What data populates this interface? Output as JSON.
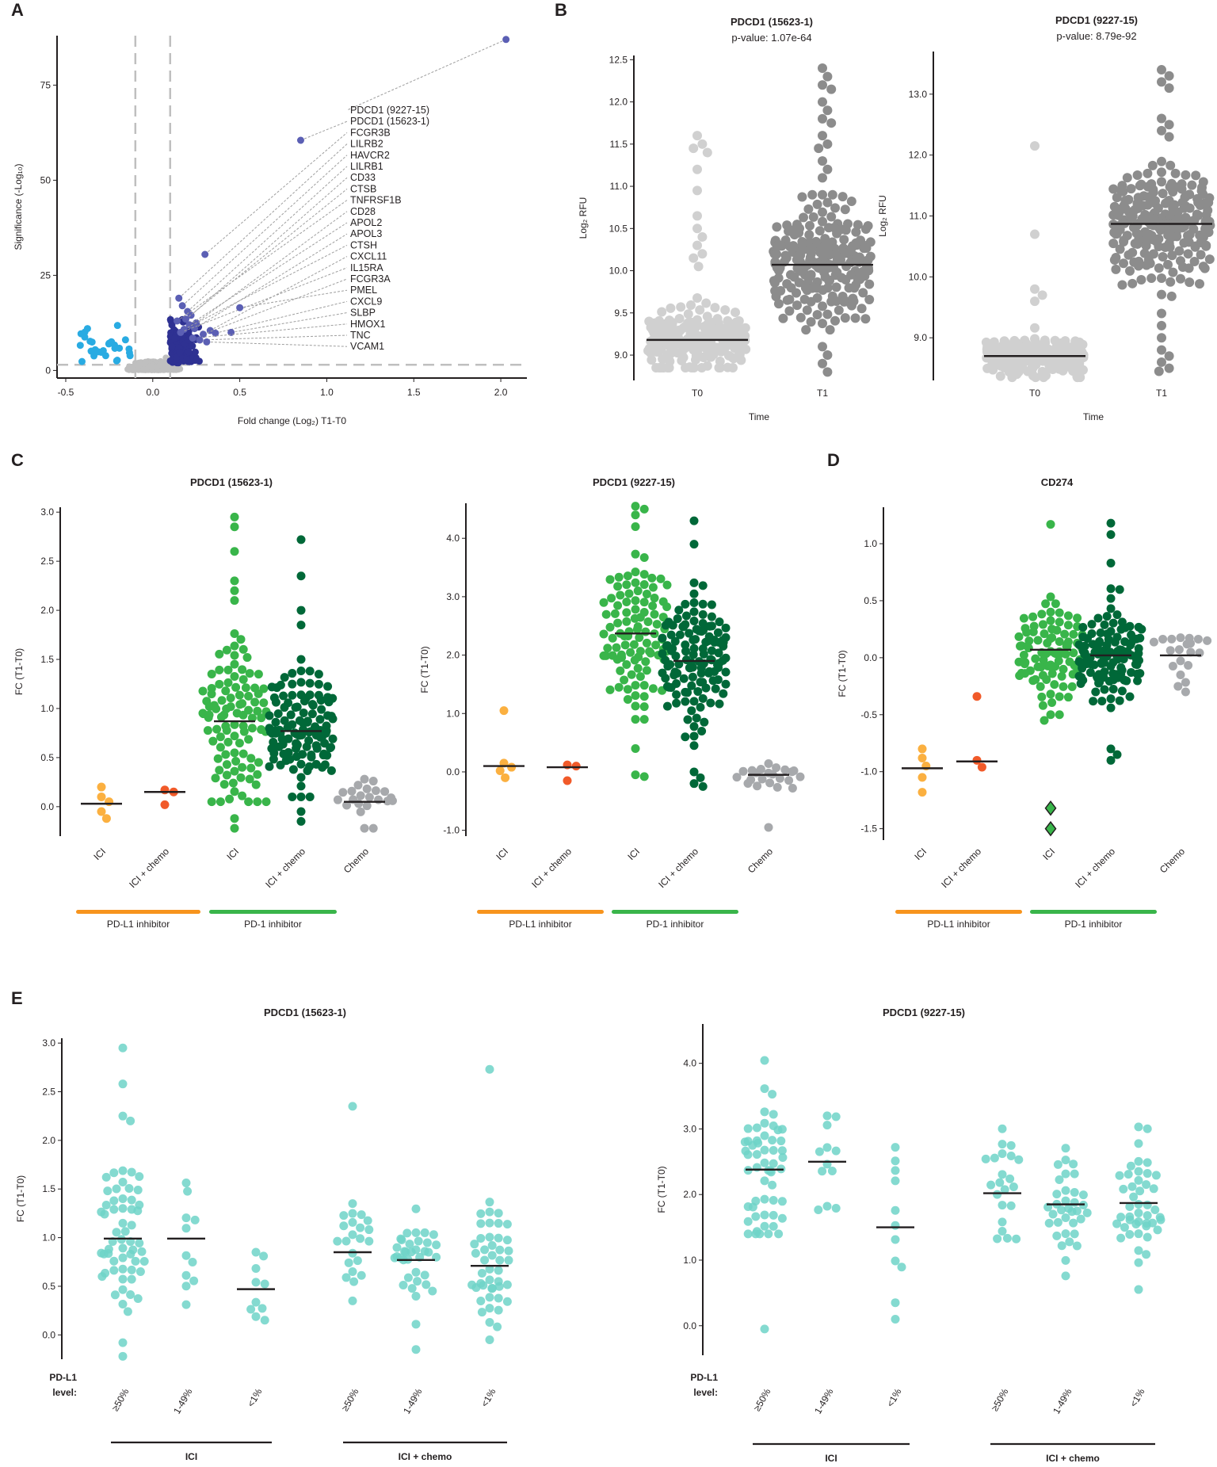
{
  "panel_labels": [
    "A",
    "B",
    "C",
    "D",
    "E"
  ],
  "chart_data": [
    {
      "id": "A",
      "type": "scatter",
      "title": "",
      "xlabel": "Fold change (Log₂) T1-T0",
      "ylabel": "Significance (-Log₁₀)",
      "xlim": [
        -0.55,
        2.15
      ],
      "ylim": [
        -2,
        88
      ],
      "xticks": [
        -0.5,
        0.0,
        0.5,
        1.0,
        1.5,
        2.0
      ],
      "xtick_labels": [
        "-0.5",
        "0.0",
        "0.5",
        "1.0",
        "1.5",
        "2.0"
      ],
      "yticks": [
        0,
        25,
        50,
        75
      ],
      "thresholds": {
        "fc": [
          -0.1,
          0.1
        ],
        "significance": 1.5
      },
      "colors": {
        "down": "#29abe2",
        "ns": "#bfbfbf",
        "up": "#2e3192"
      },
      "labeled_points": [
        {
          "gene": "PDCD1 (9227-15)",
          "x": 2.03,
          "y": 87.0
        },
        {
          "gene": "PDCD1 (15623-1)",
          "x": 0.85,
          "y": 60.5
        },
        {
          "gene": "FCGR3B",
          "x": 0.3,
          "y": 30.5
        },
        {
          "gene": "LILRB2",
          "x": 0.15,
          "y": 19.0
        },
        {
          "gene": "HAVCR2",
          "x": 0.17,
          "y": 17.0
        },
        {
          "gene": "LILRB1",
          "x": 0.2,
          "y": 15.5
        },
        {
          "gene": "CD33",
          "x": 0.22,
          "y": 14.5
        },
        {
          "gene": "CTSB",
          "x": 0.19,
          "y": 13.5
        },
        {
          "gene": "TNFRSF1B",
          "x": 0.14,
          "y": 13.0
        },
        {
          "gene": "CD28",
          "x": 0.25,
          "y": 12.5
        },
        {
          "gene": "APOL2",
          "x": 0.21,
          "y": 12.0
        },
        {
          "gene": "APOL3",
          "x": 0.24,
          "y": 11.0
        },
        {
          "gene": "CTSH",
          "x": 0.18,
          "y": 10.8
        },
        {
          "gene": "CXCL11",
          "x": 0.33,
          "y": 10.5
        },
        {
          "gene": "IL15RA",
          "x": 0.16,
          "y": 10.0
        },
        {
          "gene": "FCGR3A",
          "x": 0.29,
          "y": 9.5
        },
        {
          "gene": "PMEL",
          "x": 0.5,
          "y": 16.5
        },
        {
          "gene": "CXCL9",
          "x": 0.36,
          "y": 9.8
        },
        {
          "gene": "SLBP",
          "x": 0.45,
          "y": 10.0
        },
        {
          "gene": "HMOX1",
          "x": 0.23,
          "y": 8.5
        },
        {
          "gene": "TNC",
          "x": 0.27,
          "y": 8.0
        },
        {
          "gene": "VCAM1",
          "x": 0.31,
          "y": 7.5
        }
      ]
    },
    {
      "id": "B1",
      "type": "scatter",
      "title": "PDCD1 (15623-1)",
      "subtitle": "p-value: 1.07e-64",
      "xlabel": "Time",
      "ylabel": "Log₂ RFU",
      "categories": [
        "T0",
        "T1"
      ],
      "ylim": [
        8.7,
        12.55
      ],
      "yticks": [
        9.0,
        9.5,
        10.0,
        10.5,
        11.0,
        11.5,
        12.0,
        12.5
      ],
      "ytick_labels": [
        "9.0",
        "9.5",
        "10.0",
        "10.5",
        "11.0",
        "11.5",
        "12.0",
        "12.5"
      ],
      "series": [
        {
          "name": "T0",
          "color": "#d0d0d0",
          "n": 230,
          "median": 9.18,
          "sd": 0.18,
          "min": 8.85,
          "max": 10.0,
          "outliers": [
            11.6,
            11.5,
            11.45,
            11.4,
            11.2,
            10.95,
            10.65,
            10.5,
            10.4,
            10.3,
            10.2,
            10.15,
            10.05
          ]
        },
        {
          "name": "T1",
          "color": "#8c8c8c",
          "n": 230,
          "median": 10.07,
          "sd": 0.35,
          "min": 9.3,
          "max": 10.9,
          "outliers": [
            12.4,
            12.3,
            12.2,
            12.15,
            12.0,
            11.9,
            11.8,
            11.75,
            11.6,
            11.5,
            11.45,
            11.3,
            11.2,
            11.1,
            9.1,
            9.0,
            8.9,
            8.8
          ]
        }
      ]
    },
    {
      "id": "B2",
      "type": "scatter",
      "title": "PDCD1 (9227-15)",
      "subtitle": "p-value: 8.79e-92",
      "xlabel": "Time",
      "ylabel": "Log₂ RFU",
      "categories": [
        "T0",
        "T1"
      ],
      "ylim": [
        8.3,
        13.7
      ],
      "yticks": [
        9.0,
        10.0,
        11.0,
        12.0,
        13.0
      ],
      "ytick_labels": [
        "9.0",
        "10.0",
        "11.0",
        "12.0",
        "13.0"
      ],
      "series": [
        {
          "name": "T0",
          "color": "#d0d0d0",
          "n": 230,
          "median": 8.7,
          "sd": 0.16,
          "min": 8.35,
          "max": 9.3,
          "outliers": [
            12.15,
            10.7,
            9.8,
            9.7,
            9.6
          ]
        },
        {
          "name": "T1",
          "color": "#8c8c8c",
          "n": 230,
          "median": 10.87,
          "sd": 0.5,
          "min": 9.6,
          "max": 12.1,
          "outliers": [
            13.4,
            13.3,
            13.2,
            13.1,
            12.6,
            12.5,
            12.4,
            12.3,
            9.4,
            9.2,
            9.0,
            8.8,
            8.7,
            8.6,
            8.5,
            8.45
          ]
        }
      ]
    },
    {
      "id": "C1",
      "type": "scatter",
      "title": "PDCD1 (15623-1)",
      "ylabel": "FC (T1-T0)",
      "categories": [
        "ICI",
        "ICI + chemo",
        "ICI",
        "ICI + chemo",
        "Chemo"
      ],
      "ylim": [
        -0.3,
        3.05
      ],
      "yticks": [
        0.0,
        0.5,
        1.0,
        1.5,
        2.0,
        2.5,
        3.0
      ],
      "ytick_labels": [
        "0.0",
        "0.5",
        "1.0",
        "1.5",
        "2.0",
        "2.5",
        "3.0"
      ],
      "groups": [
        {
          "label": "PD-L1 inhibitor",
          "color": "#f7941d",
          "from": 0,
          "to": 1
        },
        {
          "label": "PD-1 inhibitor",
          "color": "#39b54a",
          "from": 2,
          "to": 3
        }
      ],
      "series": [
        {
          "name": "PD-L1 ICI",
          "color": "#fbb040",
          "median": 0.03,
          "values": [
            0.2,
            0.1,
            0.05,
            -0.05,
            -0.12
          ]
        },
        {
          "name": "PD-L1 ICI + chemo",
          "color": "#f15a29",
          "median": 0.15,
          "values": [
            0.17,
            0.15,
            0.02
          ]
        },
        {
          "name": "PD-1 ICI",
          "color": "#39b54a",
          "median": 0.87,
          "n": 100,
          "sd": 0.45,
          "min": 0.05,
          "max": 1.95,
          "outliers": [
            2.95,
            2.85,
            2.6,
            2.3,
            2.2,
            2.1,
            -0.12,
            -0.22
          ]
        },
        {
          "name": "PD-1 ICI + chemo",
          "color": "#006838",
          "median": 0.77,
          "n": 125,
          "sd": 0.3,
          "min": 0.1,
          "max": 1.5,
          "outliers": [
            2.72,
            2.35,
            2.0,
            1.85,
            -0.05,
            -0.15
          ]
        },
        {
          "name": "Chemo",
          "color": "#a7a9ac",
          "median": 0.05,
          "n": 22,
          "sd": 0.12,
          "min": -0.22,
          "max": 0.28
        }
      ]
    },
    {
      "id": "C2",
      "type": "scatter",
      "title": "PDCD1 (9227-15)",
      "ylabel": "FC (T1-T0)",
      "categories": [
        "ICI",
        "ICI + chemo",
        "ICI",
        "ICI + chemo",
        "Chemo"
      ],
      "ylim": [
        -1.1,
        4.6
      ],
      "yticks": [
        -1.0,
        0.0,
        1.0,
        2.0,
        3.0,
        4.0
      ],
      "ytick_labels": [
        "-1.0",
        "0.0",
        "1.0",
        "2.0",
        "3.0",
        "4.0"
      ],
      "groups": [
        {
          "label": "PD-L1 inhibitor",
          "color": "#f7941d",
          "from": 0,
          "to": 1
        },
        {
          "label": "PD-1 inhibitor",
          "color": "#39b54a",
          "from": 2,
          "to": 3
        }
      ],
      "series": [
        {
          "name": "PD-L1 ICI",
          "color": "#fbb040",
          "median": 0.1,
          "values": [
            1.05,
            0.15,
            0.08,
            0.02,
            -0.1
          ]
        },
        {
          "name": "PD-L1 ICI + chemo",
          "color": "#f15a29",
          "median": 0.08,
          "values": [
            0.12,
            0.1,
            -0.15
          ]
        },
        {
          "name": "PD-1 ICI",
          "color": "#39b54a",
          "median": 2.37,
          "n": 100,
          "sd": 0.65,
          "min": 0.9,
          "max": 3.9,
          "outliers": [
            4.55,
            4.5,
            4.4,
            4.2,
            0.4,
            -0.05,
            -0.08
          ]
        },
        {
          "name": "PD-1 ICI + chemo",
          "color": "#006838",
          "median": 1.9,
          "n": 125,
          "sd": 0.55,
          "min": 0.6,
          "max": 3.3,
          "outliers": [
            4.3,
            3.9,
            0.45,
            0.0,
            -0.1,
            -0.2,
            -0.25
          ]
        },
        {
          "name": "Chemo",
          "color": "#a7a9ac",
          "median": -0.05,
          "n": 22,
          "sd": 0.13,
          "min": -0.3,
          "max": 0.3,
          "outliers": [
            -0.95
          ]
        }
      ]
    },
    {
      "id": "D",
      "type": "scatter",
      "title": "CD274",
      "ylabel": "FC (T1-T0)",
      "categories": [
        "ICI",
        "ICI + chemo",
        "ICI",
        "ICI + chemo",
        "Chemo"
      ],
      "ylim": [
        -1.6,
        1.32
      ],
      "yticks": [
        -1.5,
        -1.0,
        -0.5,
        0.0,
        0.5,
        1.0
      ],
      "ytick_labels": [
        "-1.5",
        "-1.0",
        "-0.5",
        "0.0",
        "0.5",
        "1.0"
      ],
      "groups": [
        {
          "label": "PD-L1 inhibitor",
          "color": "#f7941d",
          "from": 0,
          "to": 1
        },
        {
          "label": "PD-1 inhibitor",
          "color": "#39b54a",
          "from": 2,
          "to": 3
        }
      ],
      "series": [
        {
          "name": "PD-L1 ICI",
          "color": "#fbb040",
          "median": -0.97,
          "values": [
            -0.8,
            -0.88,
            -0.95,
            -1.05,
            -1.18
          ]
        },
        {
          "name": "PD-L1 ICI + chemo",
          "color": "#f15a29",
          "median": -0.91,
          "values": [
            -0.34,
            -0.9,
            -0.96
          ]
        },
        {
          "name": "PD-1 ICI",
          "color": "#39b54a",
          "median": 0.07,
          "n": 95,
          "sd": 0.22,
          "min": -0.5,
          "max": 0.75,
          "outliers": [
            1.17,
            -0.55
          ],
          "diamonds": [
            -1.32,
            -1.5
          ]
        },
        {
          "name": "PD-1 ICI + chemo",
          "color": "#006838",
          "median": 0.02,
          "n": 125,
          "sd": 0.22,
          "min": -0.6,
          "max": 0.7,
          "outliers": [
            1.18,
            1.08,
            0.83,
            -0.8,
            -0.85,
            -0.9
          ]
        },
        {
          "name": "Chemo",
          "color": "#a7a9ac",
          "median": 0.02,
          "n": 20,
          "sd": 0.18,
          "min": -0.3,
          "max": 0.48
        }
      ]
    },
    {
      "id": "E1",
      "type": "scatter",
      "title": "PDCD1 (15623-1)",
      "ylabel": "FC (T1-T0)",
      "categories": [
        "≥50%",
        "1-49%",
        "<1%",
        "≥50%",
        "1-49%",
        "<1%"
      ],
      "ylim": [
        -0.25,
        3.05
      ],
      "yticks": [
        0.0,
        0.5,
        1.0,
        1.5,
        2.0,
        2.5,
        3.0
      ],
      "ytick_labels": [
        "0.0",
        "0.5",
        "1.0",
        "1.5",
        "2.0",
        "2.5",
        "3.0"
      ],
      "level_label": [
        "PD-L1",
        "level:"
      ],
      "groups": [
        {
          "label": "ICI",
          "from": 0,
          "to": 2
        },
        {
          "label": "ICI + chemo",
          "from": 3,
          "to": 5
        }
      ],
      "color": "#6fd3c8",
      "series": [
        {
          "name": "ICI ≥50%",
          "median": 0.99,
          "n": 55,
          "sd": 0.38,
          "min": 0.2,
          "max": 1.9,
          "outliers": [
            2.95,
            2.58,
            2.25,
            2.2,
            -0.08,
            -0.22
          ]
        },
        {
          "name": "ICI 1-49%",
          "median": 0.99,
          "n": 11,
          "sd": 0.45,
          "min": -0.1,
          "max": 1.75
        },
        {
          "name": "ICI <1%",
          "median": 0.47,
          "n": 10,
          "sd": 0.3,
          "min": -0.1,
          "max": 1.85
        },
        {
          "name": "ICI + chemo ≥50%",
          "median": 0.85,
          "n": 22,
          "sd": 0.3,
          "min": 0.35,
          "max": 1.35,
          "outliers": [
            2.35
          ]
        },
        {
          "name": "ICI + chemo 1-49%",
          "median": 0.77,
          "n": 35,
          "sd": 0.25,
          "min": 0.0,
          "max": 1.38,
          "outliers": [
            -0.15
          ]
        },
        {
          "name": "ICI + chemo <1%",
          "median": 0.71,
          "n": 45,
          "sd": 0.4,
          "min": -0.05,
          "max": 2.0,
          "outliers": [
            2.73
          ]
        }
      ]
    },
    {
      "id": "E2",
      "type": "scatter",
      "title": "PDCD1 (9227-15)",
      "ylabel": "FC (T1-T0)",
      "categories": [
        "≥50%",
        "1-49%",
        "<1%",
        "≥50%",
        "1-49%",
        "<1%"
      ],
      "ylim": [
        -0.45,
        4.6
      ],
      "yticks": [
        0.0,
        1.0,
        2.0,
        3.0,
        4.0
      ],
      "ytick_labels": [
        "0.0",
        "1.0",
        "2.0",
        "3.0",
        "4.0"
      ],
      "level_label": [
        "PD-L1",
        "level:"
      ],
      "groups": [
        {
          "label": "ICI",
          "from": 0,
          "to": 2
        },
        {
          "label": "ICI + chemo",
          "from": 3,
          "to": 5
        }
      ],
      "color": "#6fd3c8",
      "series": [
        {
          "name": "ICI ≥50%",
          "median": 2.38,
          "n": 55,
          "sd": 0.6,
          "min": 1.4,
          "max": 4.5,
          "outliers": [
            -0.05
          ]
        },
        {
          "name": "ICI 1-49%",
          "median": 2.5,
          "n": 12,
          "sd": 0.6,
          "min": 0.1,
          "max": 3.2
        },
        {
          "name": "ICI <1%",
          "median": 1.5,
          "n": 11,
          "sd": 0.8,
          "min": 0.1,
          "max": 3.25
        },
        {
          "name": "ICI + chemo ≥50%",
          "median": 2.02,
          "n": 22,
          "sd": 0.5,
          "min": 0.9,
          "max": 3.9
        },
        {
          "name": "ICI + chemo 1-49%",
          "median": 1.85,
          "n": 35,
          "sd": 0.5,
          "min": -0.1,
          "max": 3.3
        },
        {
          "name": "ICI + chemo <1%",
          "median": 1.87,
          "n": 45,
          "sd": 0.6,
          "min": -0.25,
          "max": 4.3
        }
      ]
    }
  ]
}
